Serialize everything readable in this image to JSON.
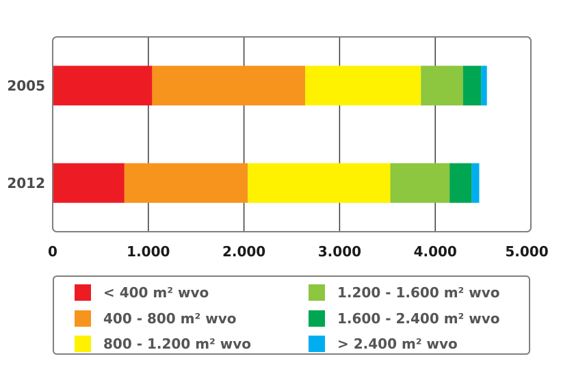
{
  "chart_data": {
    "type": "bar",
    "orientation": "horizontal",
    "stacked": true,
    "categories": [
      "2005",
      "2012"
    ],
    "series": [
      {
        "name": "< 400 m² wvo",
        "color": "#ed1c24",
        "values": [
          1040,
          750
        ]
      },
      {
        "name": "400 - 800 m² wvo",
        "color": "#f7941d",
        "values": [
          1600,
          1290
        ]
      },
      {
        "name": "800 - 1.200 m² wvo",
        "color": "#fff200",
        "values": [
          1210,
          1490
        ]
      },
      {
        "name": "1.200 - 1.600 m² wvo",
        "color": "#8dc63f",
        "values": [
          440,
          620
        ]
      },
      {
        "name": "1.600 - 2.400 m² wvo",
        "color": "#00a651",
        "values": [
          190,
          230
        ]
      },
      {
        "name": "> 2.400 m² wvo",
        "color": "#00aeef",
        "values": [
          60,
          80
        ]
      }
    ],
    "xlim": [
      0,
      5000
    ],
    "xticks": [
      "0",
      "1.000",
      "2.000",
      "3.000",
      "4.000",
      "5.000"
    ],
    "grid": true,
    "legend_position": "bottom"
  }
}
